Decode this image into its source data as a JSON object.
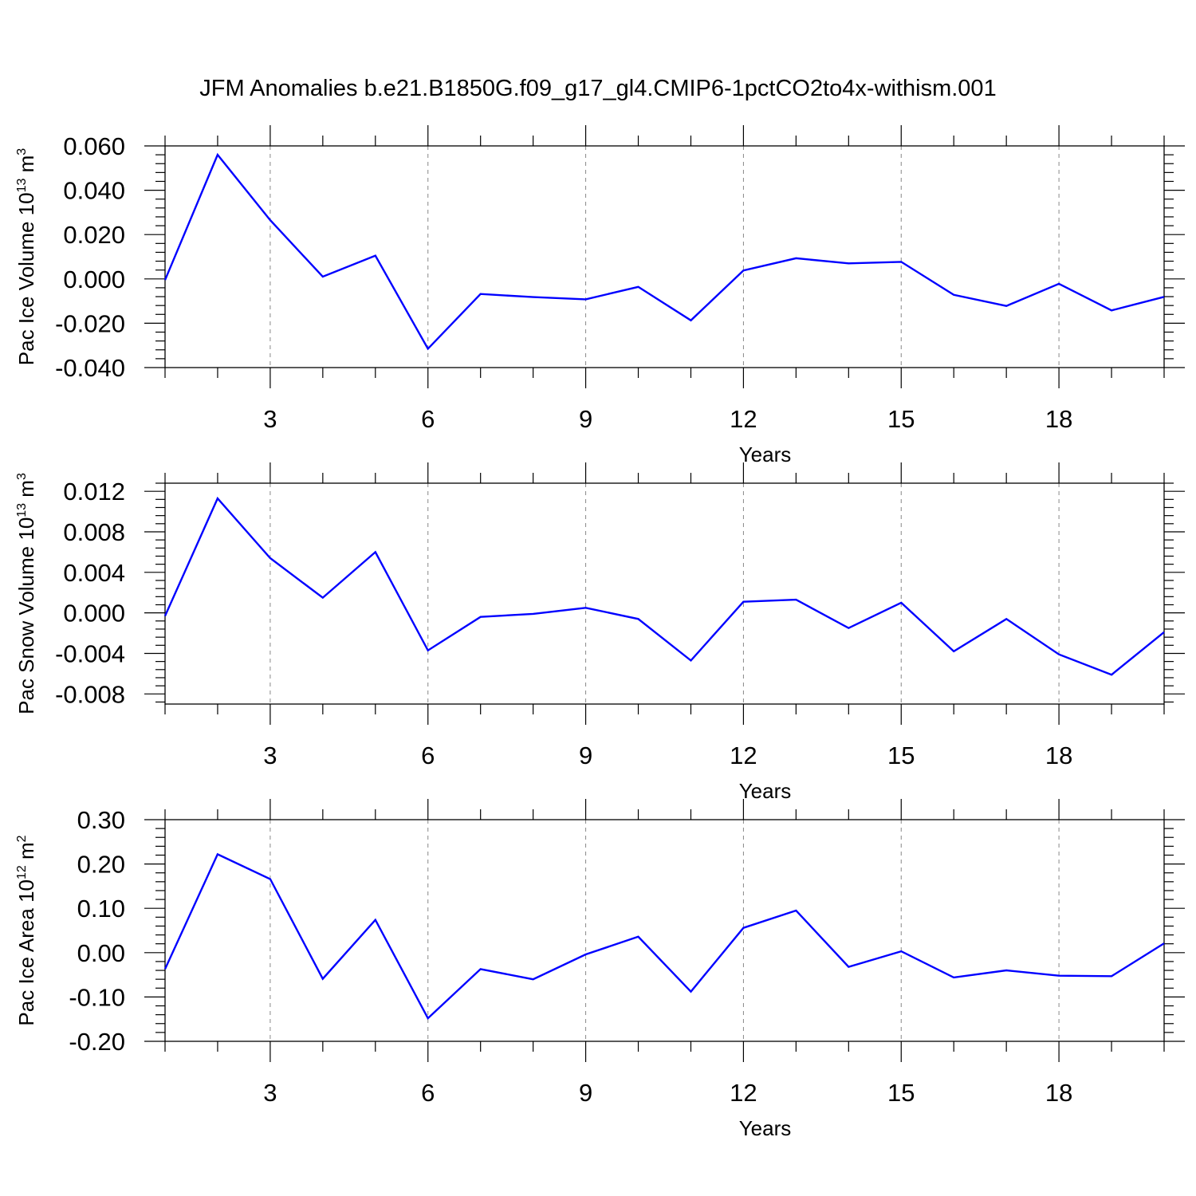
{
  "chart_data": {
    "title": "JFM Anomalies b.e21.B1850G.f09_g17_gl4.CMIP6-1pctCO2to4x-withism.001",
    "line_color": "#0000ff",
    "grid": "vertical dashed at major x ticks",
    "panels": [
      {
        "type": "line",
        "ylabel_main": "Pac Ice Volume 10",
        "ylabel_exp": "13",
        "ylabel_unit": " m",
        "ylabel_unit_exp": "3",
        "xlabel": "Years",
        "xlim": [
          1,
          20
        ],
        "ylim": [
          -0.04,
          0.06
        ],
        "yticks": [
          -0.04,
          -0.02,
          0.0,
          0.02,
          0.04,
          0.06
        ],
        "yticklabels": [
          "-0.040",
          "-0.020",
          "0.000",
          "0.020",
          "0.040",
          "0.060"
        ],
        "xticks": [
          3,
          6,
          9,
          12,
          15,
          18
        ],
        "xticklabels": [
          "3",
          "6",
          "9",
          "12",
          "15",
          "18"
        ],
        "x": [
          1,
          2,
          3,
          4,
          5,
          6,
          7,
          8,
          9,
          10,
          11,
          12,
          13,
          14,
          15,
          16,
          17,
          18,
          19,
          20
        ],
        "values": [
          -0.0005,
          0.056,
          0.0265,
          0.001,
          0.0105,
          -0.0315,
          -0.0068,
          -0.0082,
          -0.0092,
          -0.0036,
          -0.0187,
          0.0038,
          0.0093,
          0.007,
          0.0077,
          -0.0072,
          -0.0122,
          -0.0022,
          -0.0142,
          -0.0081
        ]
      },
      {
        "type": "line",
        "ylabel_main": "Pac Snow Volume 10",
        "ylabel_exp": "13",
        "ylabel_unit": " m",
        "ylabel_unit_exp": "3",
        "xlabel": "Years",
        "xlim": [
          1,
          20
        ],
        "ylim": [
          -0.009,
          0.0128
        ],
        "yticks": [
          -0.008,
          -0.004,
          0.0,
          0.004,
          0.008,
          0.012
        ],
        "yticklabels": [
          "-0.008",
          "-0.004",
          "0.000",
          "0.004",
          "0.008",
          "0.012"
        ],
        "xticks": [
          3,
          6,
          9,
          12,
          15,
          18
        ],
        "xticklabels": [
          "3",
          "6",
          "9",
          "12",
          "15",
          "18"
        ],
        "x": [
          1,
          2,
          3,
          4,
          5,
          6,
          7,
          8,
          9,
          10,
          11,
          12,
          13,
          14,
          15,
          16,
          17,
          18,
          19,
          20
        ],
        "values": [
          -0.0003,
          0.0113,
          0.0054,
          0.0015,
          0.006,
          -0.0037,
          -0.0004,
          -0.0001,
          0.0005,
          -0.0006,
          -0.0047,
          0.0011,
          0.0013,
          -0.0015,
          0.001,
          -0.0038,
          -0.0006,
          -0.0041,
          -0.0061,
          -0.0019
        ]
      },
      {
        "type": "line",
        "ylabel_main": "Pac Ice Area 10",
        "ylabel_exp": "12",
        "ylabel_unit": " m",
        "ylabel_unit_exp": "2",
        "xlabel": "Years",
        "xlim": [
          1,
          20
        ],
        "ylim": [
          -0.2,
          0.3
        ],
        "yticks": [
          -0.2,
          -0.1,
          0.0,
          0.1,
          0.2,
          0.3
        ],
        "yticklabels": [
          "-0.20",
          "-0.10",
          "0.00",
          "0.10",
          "0.20",
          "0.30"
        ],
        "xticks": [
          3,
          6,
          9,
          12,
          15,
          18
        ],
        "xticklabels": [
          "3",
          "6",
          "9",
          "12",
          "15",
          "18"
        ],
        "x": [
          1,
          2,
          3,
          4,
          5,
          6,
          7,
          8,
          9,
          10,
          11,
          12,
          13,
          14,
          15,
          16,
          17,
          18,
          19,
          20
        ],
        "values": [
          -0.037,
          0.222,
          0.166,
          -0.059,
          0.074,
          -0.148,
          -0.037,
          -0.06,
          -0.004,
          0.036,
          -0.088,
          0.056,
          0.095,
          -0.032,
          0.003,
          -0.056,
          -0.04,
          -0.052,
          -0.053,
          0.021
        ]
      }
    ]
  }
}
